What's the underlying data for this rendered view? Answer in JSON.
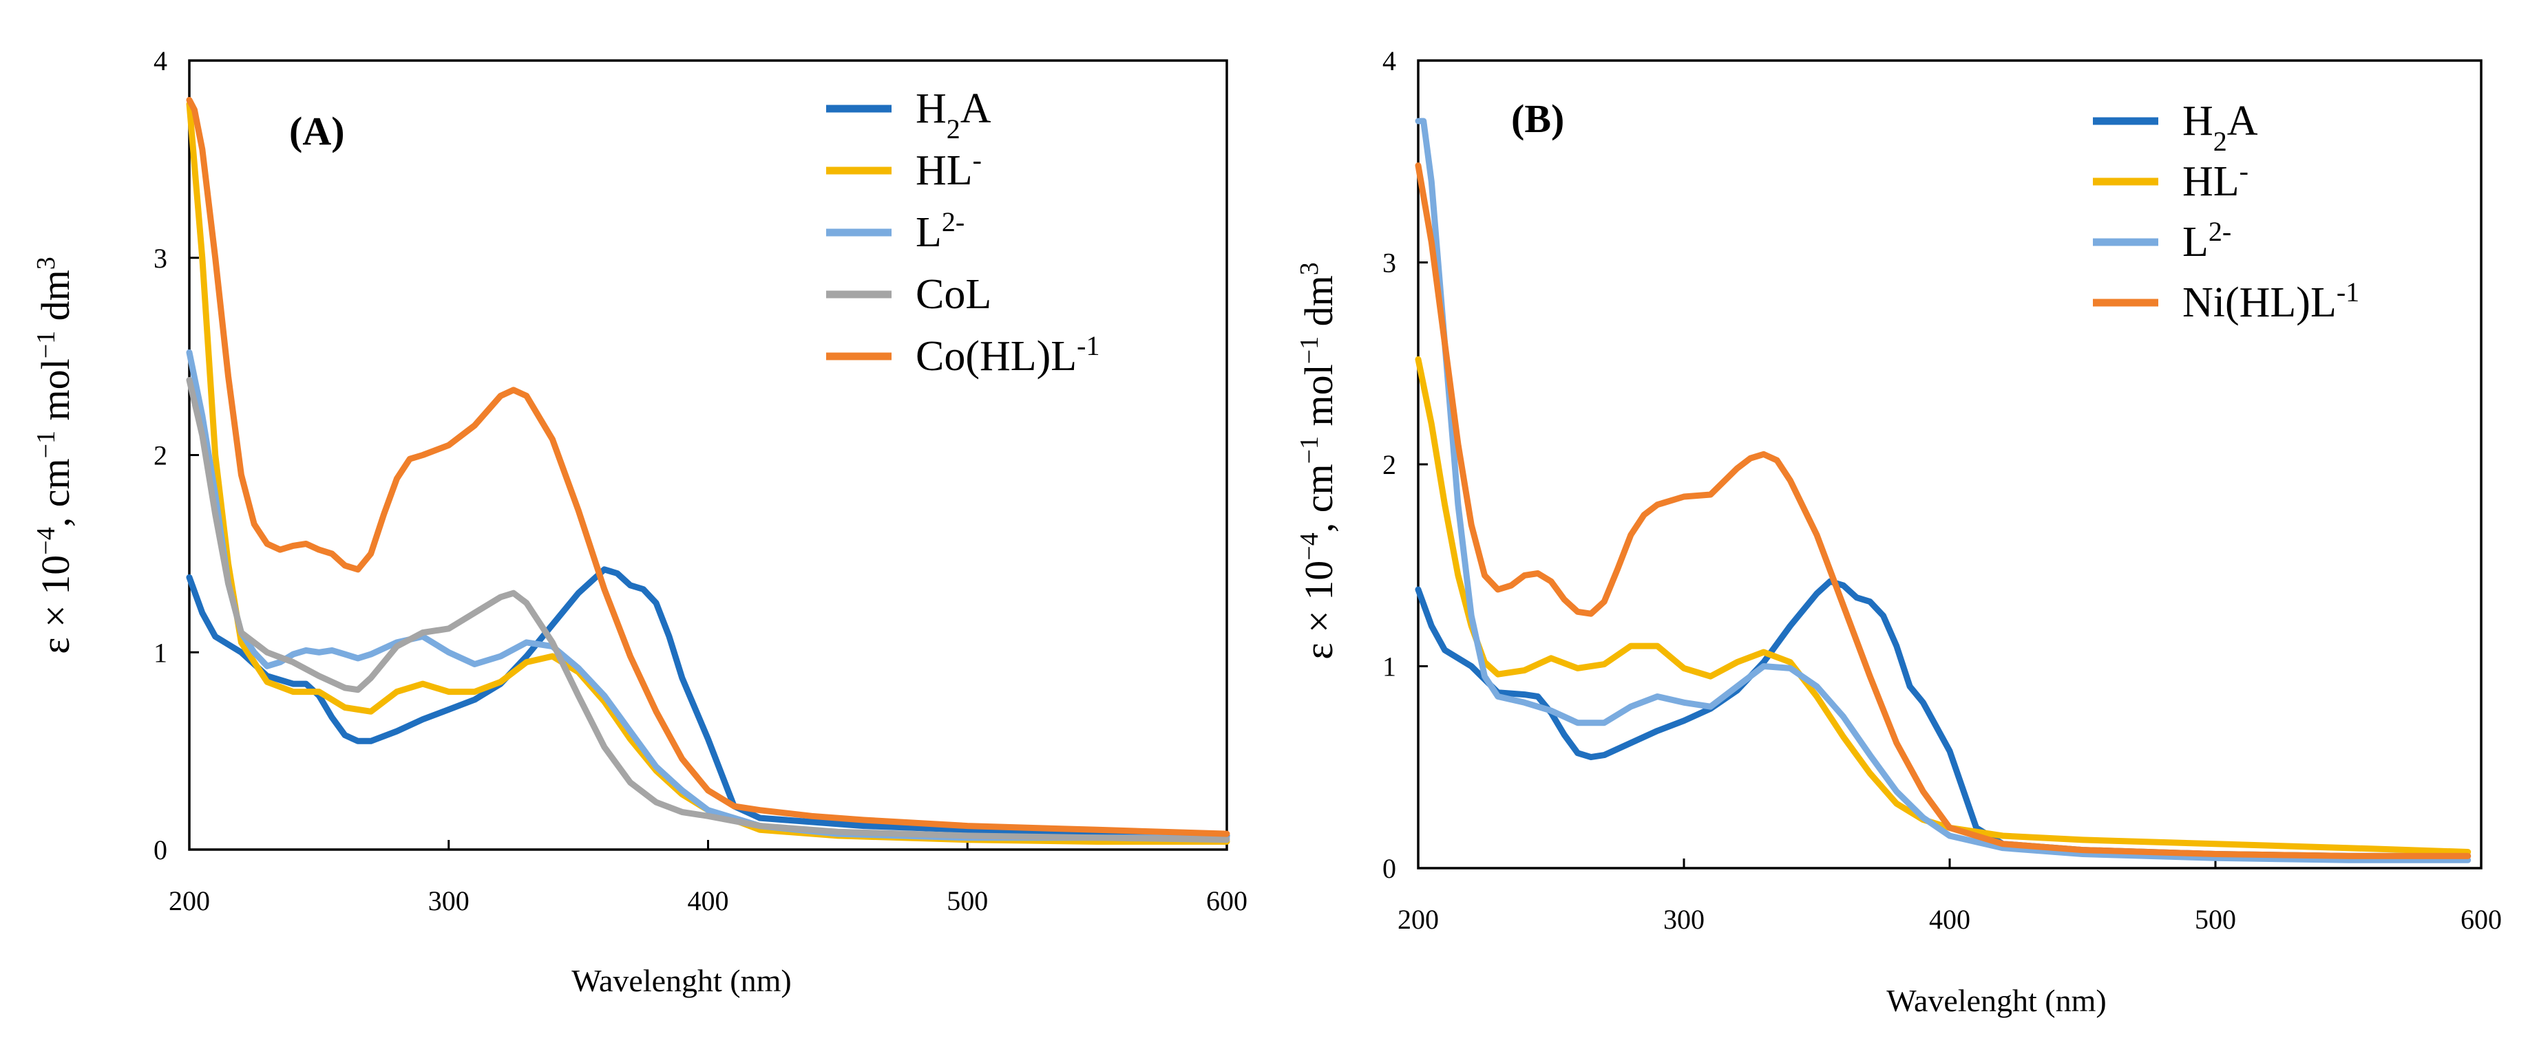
{
  "chart_data": [
    {
      "type": "line",
      "panel_label": "(A)",
      "xlabel": "Wavelenght (nm)",
      "ylabel": "ε × 10",
      "ylabel_exp": "−4",
      "ylabel_units": ", cm",
      "ylabel_units_exp1": "−1",
      "ylabel_units_mol": " mol",
      "ylabel_units_exp2": "−1",
      "ylabel_units_dm": " dm",
      "ylabel_units_exp3": "3",
      "xlim": [
        200,
        600
      ],
      "ylim": [
        0,
        4
      ],
      "xticks": [
        "200",
        "300",
        "400",
        "500",
        "600"
      ],
      "yticks": [
        "0",
        "1",
        "2",
        "3",
        "4"
      ],
      "grid": false,
      "legend_position": "top-right",
      "series": [
        {
          "name": "H",
          "sub": "2",
          "tail": "A",
          "sup": "",
          "color": "#1f6fbf",
          "x": [
            200,
            205,
            210,
            220,
            230,
            240,
            245,
            250,
            255,
            260,
            265,
            270,
            280,
            290,
            300,
            310,
            320,
            330,
            340,
            350,
            360,
            365,
            370,
            375,
            380,
            385,
            390,
            400,
            410,
            420,
            440,
            460,
            500,
            550,
            600
          ],
          "y": [
            1.38,
            1.2,
            1.08,
            1.0,
            0.88,
            0.84,
            0.84,
            0.78,
            0.67,
            0.58,
            0.55,
            0.55,
            0.6,
            0.66,
            0.71,
            0.76,
            0.84,
            0.98,
            1.14,
            1.3,
            1.42,
            1.4,
            1.34,
            1.32,
            1.25,
            1.08,
            0.87,
            0.56,
            0.22,
            0.16,
            0.14,
            0.12,
            0.1,
            0.08,
            0.07
          ]
        },
        {
          "name": "HL",
          "sub": "",
          "tail": "",
          "sup": "-",
          "color": "#f5b800",
          "x": [
            200,
            205,
            210,
            215,
            220,
            230,
            240,
            250,
            260,
            270,
            280,
            290,
            300,
            310,
            320,
            330,
            340,
            350,
            360,
            370,
            380,
            390,
            400,
            420,
            450,
            500,
            550,
            600
          ],
          "y": [
            3.78,
            3.0,
            2.0,
            1.45,
            1.05,
            0.85,
            0.8,
            0.8,
            0.72,
            0.7,
            0.8,
            0.84,
            0.8,
            0.8,
            0.85,
            0.95,
            0.98,
            0.9,
            0.75,
            0.56,
            0.4,
            0.28,
            0.2,
            0.1,
            0.07,
            0.05,
            0.04,
            0.04
          ]
        },
        {
          "name": "L",
          "sub": "",
          "tail": "",
          "sup": "2-",
          "color": "#7aabdf",
          "x": [
            200,
            205,
            210,
            215,
            220,
            225,
            230,
            235,
            240,
            245,
            250,
            255,
            260,
            265,
            270,
            280,
            290,
            300,
            310,
            320,
            330,
            340,
            350,
            360,
            370,
            380,
            390,
            400,
            420,
            450,
            500,
            550,
            600
          ],
          "y": [
            2.52,
            2.2,
            1.8,
            1.35,
            1.1,
            1.0,
            0.93,
            0.95,
            0.99,
            1.01,
            1.0,
            1.01,
            0.99,
            0.97,
            0.99,
            1.05,
            1.08,
            1.0,
            0.94,
            0.98,
            1.05,
            1.03,
            0.92,
            0.78,
            0.6,
            0.42,
            0.3,
            0.2,
            0.12,
            0.08,
            0.06,
            0.06,
            0.06
          ]
        },
        {
          "name": "CoL",
          "sub": "",
          "tail": "",
          "sup": "",
          "color": "#a5a5a5",
          "x": [
            200,
            205,
            210,
            215,
            220,
            230,
            240,
            250,
            260,
            265,
            270,
            280,
            290,
            300,
            310,
            320,
            325,
            330,
            340,
            350,
            360,
            370,
            380,
            390,
            400,
            420,
            450,
            500,
            550,
            600
          ],
          "y": [
            2.38,
            2.1,
            1.7,
            1.35,
            1.1,
            1.0,
            0.95,
            0.88,
            0.82,
            0.81,
            0.87,
            1.03,
            1.1,
            1.12,
            1.2,
            1.28,
            1.3,
            1.25,
            1.05,
            0.78,
            0.52,
            0.34,
            0.24,
            0.19,
            0.17,
            0.12,
            0.09,
            0.07,
            0.06,
            0.05
          ]
        },
        {
          "name": "Co(HL)L",
          "sub": "",
          "tail": "",
          "sup": "-1",
          "color": "#f07f2a",
          "x": [
            200,
            202,
            205,
            210,
            215,
            220,
            225,
            230,
            235,
            240,
            245,
            250,
            255,
            260,
            265,
            270,
            275,
            280,
            285,
            290,
            300,
            310,
            320,
            325,
            330,
            340,
            350,
            360,
            370,
            380,
            390,
            400,
            410,
            420,
            440,
            460,
            500,
            550,
            600
          ],
          "y": [
            3.8,
            3.75,
            3.55,
            3.0,
            2.4,
            1.9,
            1.65,
            1.55,
            1.52,
            1.54,
            1.55,
            1.52,
            1.5,
            1.44,
            1.42,
            1.5,
            1.7,
            1.88,
            1.98,
            2.0,
            2.05,
            2.15,
            2.3,
            2.33,
            2.3,
            2.08,
            1.72,
            1.32,
            0.98,
            0.7,
            0.46,
            0.3,
            0.22,
            0.2,
            0.17,
            0.15,
            0.12,
            0.1,
            0.08
          ]
        }
      ]
    },
    {
      "type": "line",
      "panel_label": "(B)",
      "xlabel": "Wavelenght (nm)",
      "ylabel": "ε × 10",
      "ylabel_exp": "−4",
      "ylabel_units": ", cm",
      "ylabel_units_exp1": "−1",
      "ylabel_units_mol": " mol",
      "ylabel_units_exp2": "−1",
      "ylabel_units_dm": " dm",
      "ylabel_units_exp3": "3",
      "xlim": [
        200,
        600
      ],
      "ylim": [
        0,
        4
      ],
      "xticks": [
        "200",
        "300",
        "400",
        "500",
        "600"
      ],
      "yticks": [
        "0",
        "1",
        "2",
        "3",
        "4"
      ],
      "grid": false,
      "legend_position": "top-right",
      "series": [
        {
          "name": "H",
          "sub": "2",
          "tail": "A",
          "sup": "",
          "color": "#1f6fbf",
          "x": [
            200,
            205,
            210,
            220,
            230,
            240,
            245,
            250,
            255,
            260,
            265,
            270,
            280,
            290,
            300,
            310,
            320,
            330,
            340,
            350,
            355,
            360,
            365,
            370,
            375,
            380,
            385,
            390,
            400,
            410,
            420,
            450,
            500,
            550,
            595
          ],
          "y": [
            1.38,
            1.2,
            1.08,
            1.0,
            0.87,
            0.86,
            0.85,
            0.77,
            0.66,
            0.57,
            0.55,
            0.56,
            0.62,
            0.68,
            0.73,
            0.79,
            0.88,
            1.02,
            1.2,
            1.36,
            1.42,
            1.4,
            1.34,
            1.32,
            1.25,
            1.1,
            0.9,
            0.82,
            0.58,
            0.2,
            0.12,
            0.09,
            0.07,
            0.06,
            0.06
          ]
        },
        {
          "name": "HL",
          "sub": "",
          "tail": "",
          "sup": "-",
          "color": "#f5b800",
          "x": [
            200,
            205,
            210,
            215,
            220,
            225,
            230,
            240,
            250,
            260,
            270,
            280,
            290,
            300,
            310,
            320,
            330,
            340,
            350,
            360,
            370,
            380,
            390,
            400,
            420,
            450,
            500,
            550,
            595
          ],
          "y": [
            2.52,
            2.2,
            1.8,
            1.45,
            1.2,
            1.02,
            0.96,
            0.98,
            1.04,
            0.99,
            1.01,
            1.1,
            1.1,
            0.99,
            0.95,
            1.02,
            1.07,
            1.02,
            0.85,
            0.65,
            0.47,
            0.32,
            0.24,
            0.2,
            0.16,
            0.14,
            0.12,
            0.1,
            0.08
          ]
        },
        {
          "name": "L",
          "sub": "",
          "tail": "",
          "sup": "2-",
          "color": "#7aabdf",
          "x": [
            200,
            202,
            205,
            210,
            215,
            220,
            225,
            230,
            240,
            250,
            260,
            270,
            280,
            290,
            300,
            310,
            320,
            330,
            340,
            350,
            360,
            370,
            380,
            390,
            400,
            420,
            450,
            500,
            550,
            595
          ],
          "y": [
            3.7,
            3.7,
            3.4,
            2.6,
            1.8,
            1.25,
            0.95,
            0.85,
            0.82,
            0.78,
            0.72,
            0.72,
            0.8,
            0.85,
            0.82,
            0.8,
            0.9,
            1.0,
            0.99,
            0.9,
            0.75,
            0.56,
            0.38,
            0.25,
            0.16,
            0.1,
            0.07,
            0.05,
            0.04,
            0.04
          ]
        },
        {
          "name": "Ni(HL)L",
          "sub": "",
          "tail": "",
          "sup": "-1",
          "color": "#f07f2a",
          "x": [
            200,
            205,
            210,
            215,
            220,
            225,
            230,
            235,
            240,
            245,
            250,
            255,
            260,
            265,
            270,
            275,
            280,
            285,
            290,
            300,
            310,
            320,
            325,
            330,
            335,
            340,
            350,
            360,
            370,
            380,
            390,
            400,
            420,
            450,
            500,
            550,
            595
          ],
          "y": [
            3.48,
            3.1,
            2.6,
            2.1,
            1.7,
            1.45,
            1.38,
            1.4,
            1.45,
            1.46,
            1.42,
            1.33,
            1.27,
            1.26,
            1.32,
            1.48,
            1.65,
            1.75,
            1.8,
            1.84,
            1.85,
            1.98,
            2.03,
            2.05,
            2.02,
            1.92,
            1.65,
            1.3,
            0.95,
            0.62,
            0.38,
            0.2,
            0.12,
            0.09,
            0.07,
            0.06,
            0.06
          ]
        }
      ]
    }
  ]
}
